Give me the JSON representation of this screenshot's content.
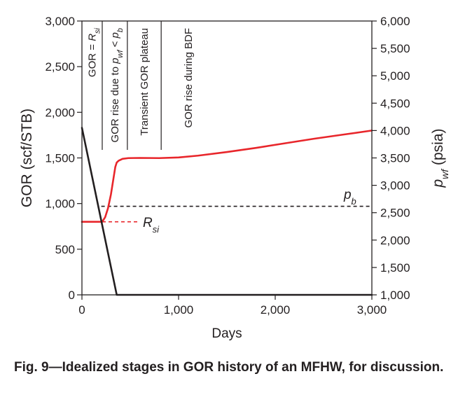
{
  "chart_data": {
    "type": "line",
    "xlabel": "Days",
    "ylabel_left": "GOR (scf/STB)",
    "ylabel_right_main": "p",
    "ylabel_right_sub": "wf",
    "ylabel_right_unit": "(psia)",
    "xlim": [
      0,
      3000
    ],
    "ylim_left": [
      0,
      3000
    ],
    "ylim_right": [
      1000,
      6000
    ],
    "x_ticks": [
      0,
      1000,
      2000,
      3000
    ],
    "x_tick_labels": [
      "0",
      "1,000",
      "2,000",
      "3,000"
    ],
    "y_left_ticks": [
      0,
      500,
      1000,
      1500,
      2000,
      2500,
      3000
    ],
    "y_left_tick_labels": [
      "0",
      "500",
      "1,000",
      "1,500",
      "2,000",
      "2,500",
      "3,000"
    ],
    "y_right_ticks": [
      1000,
      1500,
      2000,
      2500,
      3000,
      3500,
      4000,
      4500,
      5000,
      5500,
      6000
    ],
    "y_right_tick_labels": [
      "1,000",
      "1,500",
      "2,000",
      "2,500",
      "3,000",
      "3,500",
      "4,000",
      "4,500",
      "5,000",
      "5,500",
      "6,000"
    ],
    "grid": false,
    "series": [
      {
        "axis": "left",
        "color": "#e8262b",
        "x": [
          0,
          150,
          210,
          240,
          270,
          300,
          330,
          345,
          360,
          380,
          420,
          480,
          600,
          800,
          1000,
          1200,
          1500,
          1800,
          2100,
          2400,
          2700,
          3000
        ],
        "y": [
          800,
          800,
          800,
          850,
          950,
          1100,
          1300,
          1400,
          1450,
          1470,
          1490,
          1498,
          1500,
          1498,
          1505,
          1525,
          1565,
          1610,
          1660,
          1710,
          1755,
          1800
        ]
      },
      {
        "axis": "right",
        "color": "#231f20",
        "x": [
          0,
          360,
          3000
        ],
        "y": [
          4050,
          1000,
          1000
        ]
      }
    ],
    "reference_lines": [
      {
        "name": "p_b",
        "axis": "left",
        "y": 970,
        "x_start": 200,
        "x_end": 3000,
        "color": "#231f20",
        "style": "dashed"
      },
      {
        "name": "R_si",
        "axis": "left",
        "y": 800,
        "x_start": 210,
        "x_end": 600,
        "color": "#e8262b",
        "style": "dashed"
      }
    ],
    "stage_dividers_x": [
      210,
      470,
      820
    ],
    "stage_labels": [
      {
        "x": 105,
        "parts": [
          [
            "GOR = ",
            "n"
          ],
          [
            "R",
            "i"
          ],
          [
            "si",
            "isub"
          ]
        ]
      },
      {
        "x": 340,
        "parts": [
          [
            "GOR rise due to ",
            "n"
          ],
          [
            "p",
            "i"
          ],
          [
            "wf",
            "isub"
          ],
          [
            " < ",
            "n"
          ],
          [
            "p",
            "i"
          ],
          [
            "b",
            "isub"
          ]
        ]
      },
      {
        "x": 645,
        "parts": [
          [
            "Transient GOR plateau",
            "n"
          ]
        ]
      },
      {
        "x": 1100,
        "parts": [
          [
            "GOR rise during BDF",
            "n"
          ]
        ]
      }
    ],
    "annotations": [
      {
        "id": "pb",
        "main": "p",
        "sub": "b",
        "x": 2710,
        "y": 1050,
        "color": "#231f20"
      },
      {
        "id": "rsi",
        "main": "R",
        "sub": "si",
        "x": 630,
        "y": 745,
        "color": "#e8262b"
      }
    ]
  },
  "caption": "Fig. 9—Idealized stages in GOR history of an MFHW, for discussion."
}
